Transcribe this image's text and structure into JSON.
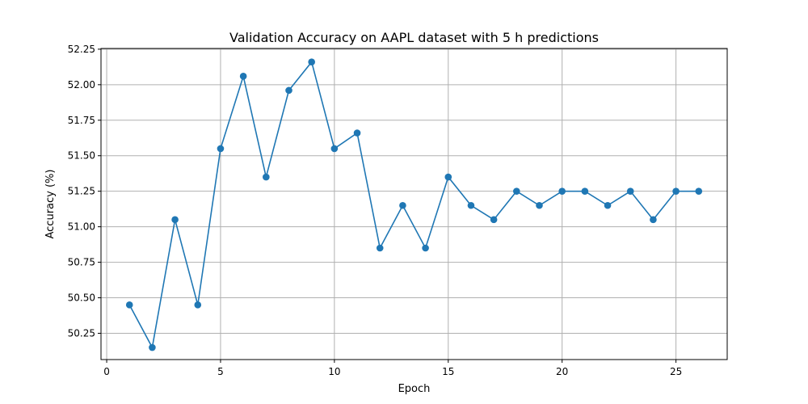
{
  "chart_data": {
    "type": "line",
    "title": "Validation Accuracy on AAPL dataset with 5 h predictions",
    "xlabel": "Epoch",
    "ylabel": "Accuracy (%)",
    "x": [
      1,
      2,
      3,
      4,
      5,
      6,
      7,
      8,
      9,
      10,
      11,
      12,
      13,
      14,
      15,
      16,
      17,
      18,
      19,
      20,
      21,
      22,
      23,
      24,
      25,
      26
    ],
    "series": [
      {
        "values": [
          50.45,
          50.15,
          51.05,
          50.45,
          51.55,
          52.06,
          51.35,
          51.96,
          52.16,
          51.55,
          51.66,
          50.85,
          51.15,
          50.85,
          51.35,
          51.15,
          51.05,
          51.25,
          51.15,
          51.25,
          51.25,
          51.15,
          51.25,
          51.05,
          51.25,
          51.25
        ],
        "color": "#1f77b4",
        "marker": "circle"
      }
    ],
    "xlim": [
      -0.25,
      27.25
    ],
    "ylim": [
      50.065,
      52.255
    ],
    "xticks": [
      0,
      5,
      10,
      15,
      20,
      25
    ],
    "xtick_labels": [
      "0",
      "5",
      "10",
      "15",
      "20",
      "25"
    ],
    "yticks": [
      50.25,
      50.5,
      50.75,
      51.0,
      51.25,
      51.5,
      51.75,
      52.0,
      52.25
    ],
    "ytick_labels": [
      "50.25",
      "50.50",
      "50.75",
      "51.00",
      "51.25",
      "51.50",
      "51.75",
      "52.00",
      "52.25"
    ],
    "grid": true
  }
}
